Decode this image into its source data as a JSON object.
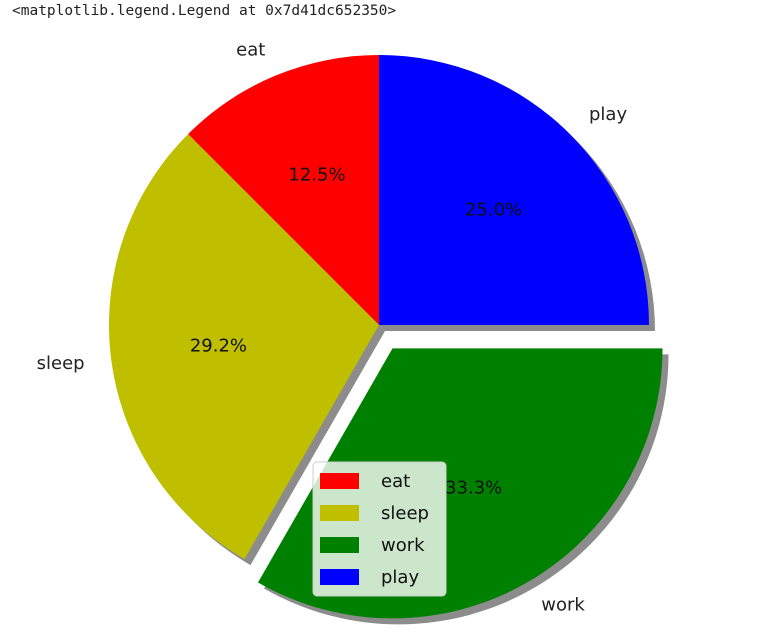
{
  "output_line": "<matplotlib.legend.Legend at 0x7d41dc652350>",
  "chart_data": {
    "type": "pie",
    "title": "",
    "categories": [
      "eat",
      "sleep",
      "work",
      "play"
    ],
    "values": [
      12.5,
      29.2,
      33.3,
      25.0
    ],
    "percent_labels": [
      "12.5%",
      "29.2%",
      "33.3%",
      "25.0%"
    ],
    "colors": [
      "#ff0000",
      "#bfbf00",
      "#008000",
      "#0000ff"
    ],
    "explode": [
      0,
      0,
      0.1,
      0
    ],
    "shadow": true,
    "start_angle_deg": 90,
    "direction": "counterclockwise",
    "legend": {
      "entries": [
        "eat",
        "sleep",
        "work",
        "play"
      ],
      "placement": "lower center"
    }
  }
}
